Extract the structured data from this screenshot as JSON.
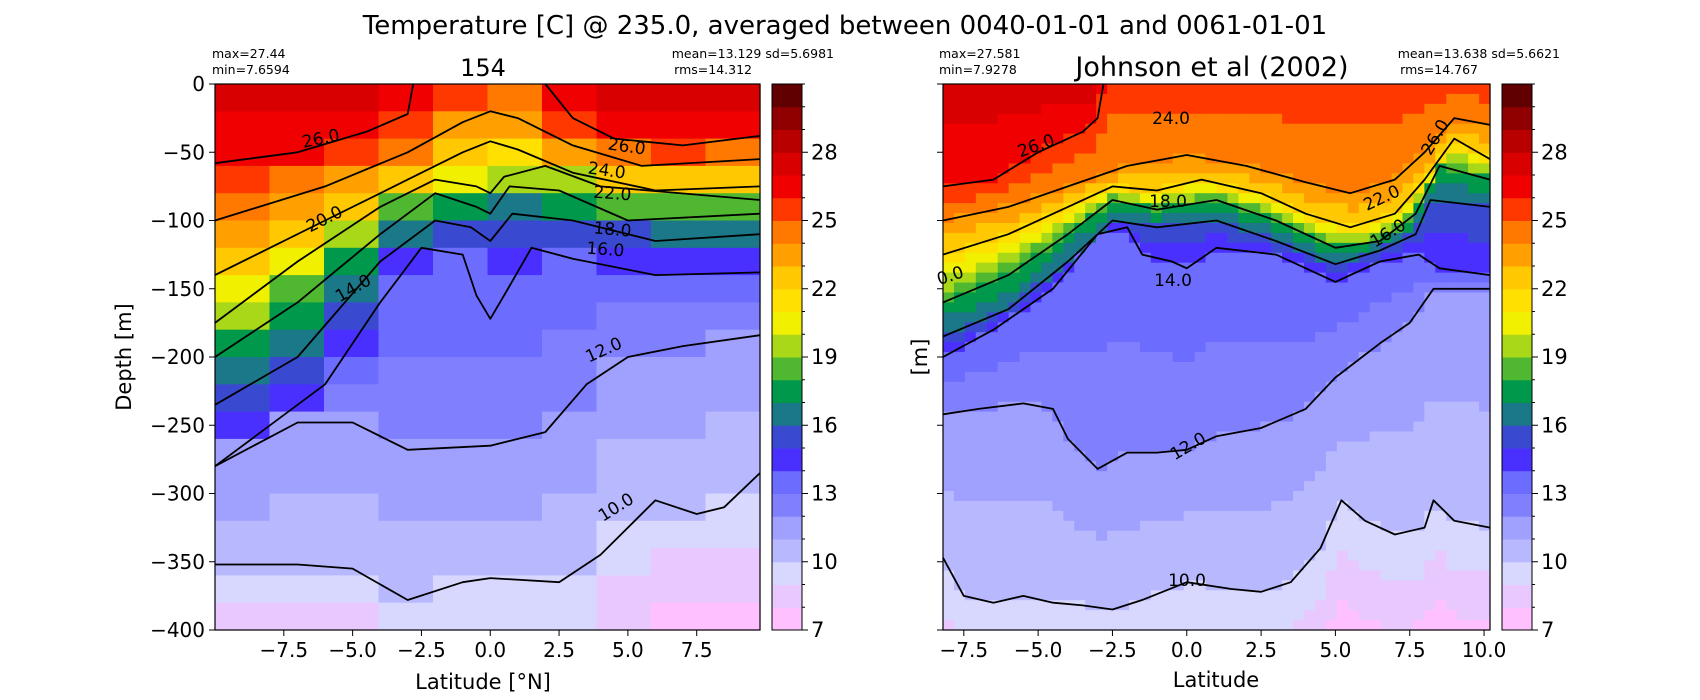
{
  "figure_title": "Temperature [C] @ 235.0, averaged between 0040-01-01 and 0061-01-01",
  "colors": {
    "levels": [
      "#ffc0ff",
      "#e8c8ff",
      "#d8d8ff",
      "#b8b8ff",
      "#a0a0ff",
      "#8080ff",
      "#6c6cff",
      "#4a30ff",
      "#3a4ad0",
      "#1a7888",
      "#00984a",
      "#50b830",
      "#a8d818",
      "#f0f000",
      "#ffe000",
      "#ffc800",
      "#ffa000",
      "#ff7800",
      "#ff3800",
      "#f00000",
      "#d80000",
      "#b80000",
      "#900000",
      "#600000"
    ],
    "contour": "#000000"
  },
  "chart_data": [
    {
      "type": "heatmap",
      "title": "154",
      "xlabel": "Latitude [°N]",
      "ylabel": "Depth [m]",
      "xlim": [
        -10,
        9.8
      ],
      "ylim": [
        -400,
        0
      ],
      "xticks": [
        -7.5,
        -5.0,
        -2.5,
        0.0,
        2.5,
        5.0,
        7.5
      ],
      "xtick_labels": [
        "−7.5",
        "−5.0",
        "−2.5",
        "0.0",
        "2.5",
        "5.0",
        "7.5"
      ],
      "yticks": [
        0,
        -50,
        -100,
        -150,
        -200,
        -250,
        -300,
        -350,
        -400
      ],
      "ytick_labels": [
        "0",
        "−50",
        "−100",
        "−150",
        "−200",
        "−250",
        "−300",
        "−350",
        "−400"
      ],
      "stats": {
        "max": "max=27.44",
        "min": "min=7.6594",
        "mean_sd": "mean=13.129 sd=5.6981",
        "rms": "rms=14.312"
      },
      "contour_levels": [
        10.0,
        12.0,
        14.0,
        16.0,
        18.0,
        20.0,
        22.0,
        24.0,
        26.0
      ],
      "contour_labels": [
        "26.0",
        "26.0",
        "24.0",
        "22.0",
        "20.0",
        "18.0",
        "16.0",
        "14.0",
        "12.0",
        "10.0"
      ],
      "contours": [
        {
          "level": 26.0,
          "points": [
            [
              -10,
              -58
            ],
            [
              -7,
              -50
            ],
            [
              -4.5,
              -35
            ],
            [
              -3,
              -22
            ],
            [
              -2.8,
              0
            ]
          ]
        },
        {
          "level": 26.0,
          "points": [
            [
              2,
              0
            ],
            [
              3,
              -25
            ],
            [
              4.5,
              -40
            ],
            [
              7,
              -45
            ],
            [
              9.8,
              -38
            ]
          ]
        },
        {
          "level": 24.0,
          "points": [
            [
              -10,
              -100
            ],
            [
              -6,
              -75
            ],
            [
              -3,
              -50
            ],
            [
              -1,
              -28
            ],
            [
              0,
              -20
            ],
            [
              1,
              -25
            ],
            [
              3,
              -45
            ],
            [
              5.5,
              -60
            ],
            [
              9.8,
              -55
            ]
          ]
        },
        {
          "level": 22.0,
          "points": [
            [
              -10,
              -140
            ],
            [
              -6,
              -100
            ],
            [
              -3,
              -70
            ],
            [
              -1,
              -50
            ],
            [
              0,
              -42
            ],
            [
              1,
              -48
            ],
            [
              3,
              -65
            ],
            [
              6,
              -78
            ],
            [
              9.8,
              -75
            ]
          ]
        },
        {
          "level": 20.0,
          "points": [
            [
              -10,
              -175
            ],
            [
              -7,
              -130
            ],
            [
              -4,
              -90
            ],
            [
              -2,
              -70
            ],
            [
              -0.5,
              -75
            ],
            [
              0,
              -80
            ],
            [
              0.5,
              -68
            ],
            [
              2,
              -60
            ],
            [
              4,
              -75
            ],
            [
              9.8,
              -85
            ]
          ]
        },
        {
          "level": 18.0,
          "points": [
            [
              -10,
              -200
            ],
            [
              -7,
              -160
            ],
            [
              -4,
              -110
            ],
            [
              -2,
              -80
            ],
            [
              -0.5,
              -90
            ],
            [
              0,
              -95
            ],
            [
              0.7,
              -75
            ],
            [
              2.5,
              -78
            ],
            [
              5,
              -100
            ],
            [
              9.8,
              -95
            ]
          ]
        },
        {
          "level": 16.0,
          "points": [
            [
              -10,
              -235
            ],
            [
              -7,
              -200
            ],
            [
              -4,
              -130
            ],
            [
              -2,
              -100
            ],
            [
              -0.7,
              -105
            ],
            [
              0,
              -115
            ],
            [
              0.8,
              -95
            ],
            [
              3,
              -100
            ],
            [
              6,
              -115
            ],
            [
              9.8,
              -110
            ]
          ]
        },
        {
          "level": 14.0,
          "points": [
            [
              -10,
              -280
            ],
            [
              -6,
              -220
            ],
            [
              -4,
              -160
            ],
            [
              -2.5,
              -120
            ],
            [
              -1,
              -125
            ],
            [
              -0.5,
              -155
            ],
            [
              0,
              -172
            ],
            [
              0.5,
              -155
            ],
            [
              1.5,
              -120
            ],
            [
              3,
              -128
            ],
            [
              6,
              -140
            ],
            [
              9.8,
              -138
            ]
          ]
        },
        {
          "level": 12.0,
          "points": [
            [
              -10,
              -280
            ],
            [
              -7,
              -248
            ],
            [
              -5,
              -248
            ],
            [
              -3,
              -268
            ],
            [
              0,
              -265
            ],
            [
              2,
              -255
            ],
            [
              3.5,
              -220
            ],
            [
              5,
              -200
            ],
            [
              7,
              -192
            ],
            [
              9.8,
              -184
            ]
          ]
        },
        {
          "level": 10.0,
          "points": [
            [
              -10,
              -352
            ],
            [
              -7,
              -352
            ],
            [
              -5,
              -355
            ],
            [
              -3,
              -378
            ],
            [
              -1,
              -365
            ],
            [
              0,
              -362
            ],
            [
              2.5,
              -365
            ],
            [
              4,
              -345
            ],
            [
              5,
              -325
            ],
            [
              6,
              -305
            ],
            [
              7.5,
              -315
            ],
            [
              8.5,
              -310
            ],
            [
              9.8,
              -285
            ]
          ]
        }
      ]
    },
    {
      "type": "heatmap",
      "title": "Johnson et al (2002)",
      "xlabel": "Latitude",
      "ylabel": "[m]",
      "xlim": [
        -8.2,
        10.2
      ],
      "ylim": [
        -400,
        0
      ],
      "xticks": [
        -7.5,
        -5.0,
        -2.5,
        0.0,
        2.5,
        5.0,
        7.5,
        10.0
      ],
      "xtick_labels": [
        "−7.5",
        "−5.0",
        "−2.5",
        "0.0",
        "2.5",
        "5.0",
        "7.5",
        "10.0"
      ],
      "stats": {
        "max": "max=27.581",
        "min": "min=7.9278",
        "mean_sd": "mean=13.638 sd=5.6621",
        "rms": "rms=14.767"
      },
      "contour_labels": [
        "24.0",
        "26.0",
        "26.0",
        "18.0",
        "22.0",
        "16.0",
        "14.0",
        "0.0",
        "12.0",
        "10.0"
      ],
      "contours": [
        {
          "level": 26.0,
          "points": [
            [
              -8.2,
              -75
            ],
            [
              -6.5,
              -70
            ],
            [
              -5,
              -50
            ],
            [
              -3.5,
              -35
            ],
            [
              -3,
              -25
            ],
            [
              -2.8,
              0
            ]
          ]
        },
        {
          "level": 24.0,
          "points": [
            [
              -8.2,
              -100
            ],
            [
              -6,
              -90
            ],
            [
              -4,
              -75
            ],
            [
              -2,
              -60
            ],
            [
              0,
              -52
            ],
            [
              2,
              -60
            ],
            [
              4,
              -72
            ],
            [
              5.5,
              -80
            ],
            [
              7,
              -70
            ],
            [
              8,
              -50
            ],
            [
              9,
              -25
            ],
            [
              10.2,
              -30
            ]
          ]
        },
        {
          "level": 22.0,
          "points": [
            [
              -8.2,
              -125
            ],
            [
              -6,
              -110
            ],
            [
              -4,
              -90
            ],
            [
              -2.5,
              -75
            ],
            [
              -1,
              -78
            ],
            [
              0.5,
              -70
            ],
            [
              2.5,
              -80
            ],
            [
              4,
              -95
            ],
            [
              5.5,
              -105
            ],
            [
              7,
              -95
            ],
            [
              8,
              -70
            ],
            [
              9,
              -40
            ],
            [
              10.2,
              -55
            ]
          ]
        },
        {
          "level": 18.0,
          "points": [
            [
              -8.2,
              -160
            ],
            [
              -6,
              -140
            ],
            [
              -4,
              -110
            ],
            [
              -2.5,
              -85
            ],
            [
              -1,
              -92
            ],
            [
              1,
              -85
            ],
            [
              3,
              -100
            ],
            [
              5,
              -120
            ],
            [
              6.5,
              -115
            ],
            [
              7.7,
              -95
            ],
            [
              8.5,
              -60
            ],
            [
              10.2,
              -70
            ]
          ]
        },
        {
          "level": 16.0,
          "points": [
            [
              -8.2,
              -185
            ],
            [
              -6,
              -165
            ],
            [
              -4,
              -130
            ],
            [
              -2.5,
              -100
            ],
            [
              -1,
              -105
            ],
            [
              1,
              -100
            ],
            [
              3,
              -115
            ],
            [
              5,
              -132
            ],
            [
              6.5,
              -122
            ],
            [
              7.7,
              -110
            ],
            [
              8.2,
              -85
            ],
            [
              10.2,
              -90
            ]
          ]
        },
        {
          "level": 14.0,
          "points": [
            [
              -8.2,
              -200
            ],
            [
              -6.5,
              -180
            ],
            [
              -4.5,
              -150
            ],
            [
              -3,
              -110
            ],
            [
              -2,
              -105
            ],
            [
              -1.5,
              -125
            ],
            [
              -0.5,
              -130
            ],
            [
              0,
              -135
            ],
            [
              1,
              -120
            ],
            [
              3,
              -125
            ],
            [
              5,
              -145
            ],
            [
              6.5,
              -130
            ],
            [
              7.8,
              -125
            ],
            [
              8.5,
              -135
            ],
            [
              10.2,
              -140
            ]
          ]
        },
        {
          "level": 12.0,
          "points": [
            [
              -8.2,
              -242
            ],
            [
              -7,
              -238
            ],
            [
              -5.5,
              -234
            ],
            [
              -4.5,
              -238
            ],
            [
              -4,
              -260
            ],
            [
              -3,
              -282
            ],
            [
              -2,
              -270
            ],
            [
              -1,
              -270
            ],
            [
              0,
              -268
            ],
            [
              1,
              -258
            ],
            [
              2.5,
              -252
            ],
            [
              4,
              -238
            ],
            [
              5,
              -215
            ],
            [
              6.5,
              -190
            ],
            [
              7.5,
              -175
            ],
            [
              8.3,
              -150
            ],
            [
              9,
              -150
            ],
            [
              10.2,
              -150
            ]
          ]
        },
        {
          "level": 10.0,
          "points": [
            [
              -8.2,
              -347
            ],
            [
              -7.5,
              -375
            ],
            [
              -6.5,
              -380
            ],
            [
              -5.5,
              -375
            ],
            [
              -4.5,
              -380
            ],
            [
              -3.5,
              -382
            ],
            [
              -2.5,
              -385
            ],
            [
              -1.5,
              -378
            ],
            [
              0,
              -365
            ],
            [
              1.5,
              -370
            ],
            [
              2.5,
              -372
            ],
            [
              3.5,
              -365
            ],
            [
              4.5,
              -340
            ],
            [
              5.2,
              -305
            ],
            [
              6,
              -320
            ],
            [
              7,
              -330
            ],
            [
              8,
              -325
            ],
            [
              8.3,
              -305
            ],
            [
              9,
              -320
            ],
            [
              10.2,
              -325
            ]
          ]
        }
      ]
    }
  ],
  "colorbar": {
    "ticks": [
      28,
      25,
      22,
      19,
      16,
      13,
      10,
      7
    ],
    "tick_labels": [
      "28",
      "25",
      "22",
      "19",
      "16",
      "13",
      "10",
      "7"
    ],
    "range": [
      7,
      31
    ]
  }
}
